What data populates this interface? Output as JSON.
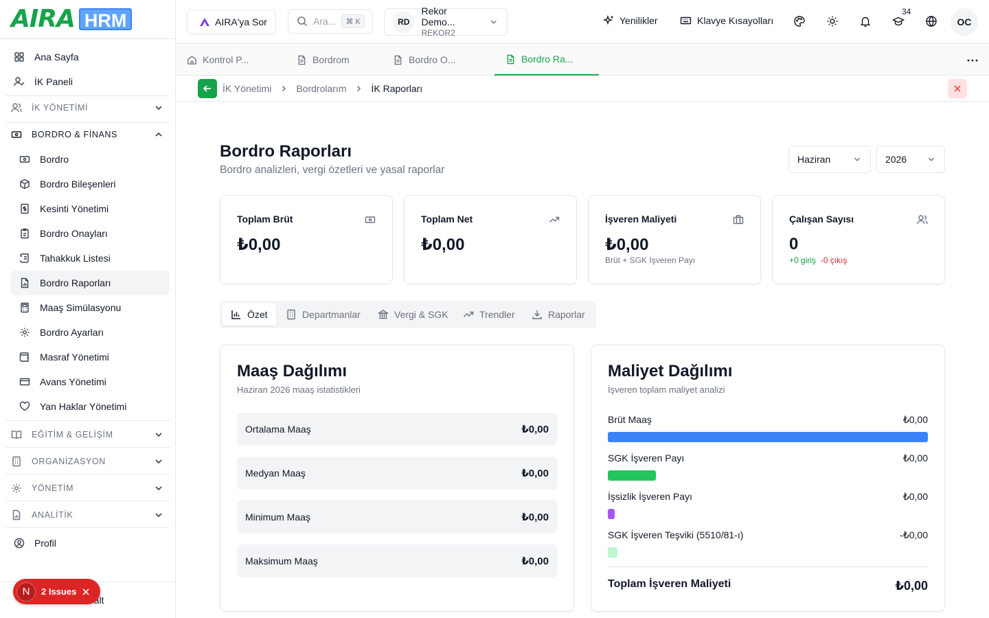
{
  "logo": {
    "brand": "AIRA",
    "product": "HRM"
  },
  "sidebar": {
    "top_items": [
      {
        "label": "Ana Sayfa",
        "icon": "dashboard-grid-icon"
      },
      {
        "label": "İK Paneli",
        "icon": "user-check-icon"
      }
    ],
    "sections": {
      "ik_yonetimi": "İK YÖNETİMİ",
      "bordro_finans": "BORDRO & FİNANS",
      "egitim": "EĞİTİM & GELİŞİM",
      "organizasyon": "ORGANİZASYON",
      "yonetim": "YÖNETİM",
      "analitik": "ANALİTİK"
    },
    "bordro_items": [
      {
        "label": "Bordro",
        "icon": "banknote-icon"
      },
      {
        "label": "Bordro Bileşenleri",
        "icon": "package-icon"
      },
      {
        "label": "Kesinti Yönetimi",
        "icon": "receipt-dollar-icon"
      },
      {
        "label": "Bordro Onayları",
        "icon": "clipboard-check-icon"
      },
      {
        "label": "Tahakkuk Listesi",
        "icon": "scroll-icon"
      },
      {
        "label": "Bordro Raporları",
        "icon": "file-chart-icon"
      },
      {
        "label": "Maaş Simülasyonu",
        "icon": "calculator-icon"
      },
      {
        "label": "Bordro Ayarları",
        "icon": "settings-icon"
      },
      {
        "label": "Masraf Yönetimi",
        "icon": "wallet-icon"
      },
      {
        "label": "Avans Yönetimi",
        "icon": "credit-card-icon"
      },
      {
        "label": "Yan Haklar Yönetimi",
        "icon": "heart-icon"
      }
    ],
    "profile": "Profil",
    "collapse_partial": "ralt",
    "issues": {
      "letter": "N",
      "label": "2 Issues"
    }
  },
  "topbar": {
    "ask_label": "AIRA'ya Sor",
    "search_placeholder": "Ara...",
    "search_shortcut": "⌘ K",
    "company": {
      "initials": "RD",
      "name": "Rekor Demo...",
      "code": "REKOR2"
    },
    "news_label": "Yenilikler",
    "shortcuts_label": "Klavye Kısayolları",
    "notification_count": "34",
    "user_initials": "OC"
  },
  "tabs": [
    {
      "label": "Kontrol P...",
      "icon": "home-icon"
    },
    {
      "label": "Bordrom",
      "icon": "file-text-icon"
    },
    {
      "label": "Bordro O...",
      "icon": "file-text-icon"
    },
    {
      "label": "Bordro Ra...",
      "icon": "file-text-icon",
      "active": true
    }
  ],
  "breadcrumb": [
    "İK Yönetimi",
    "Bordrolarım",
    "İK Raporları"
  ],
  "page": {
    "title": "Bordro Raporları",
    "subtitle": "Bordro analizleri, vergi özetleri ve yasal raporlar",
    "month": "Haziran",
    "year": "2026"
  },
  "stats": [
    {
      "label": "Toplam Brüt",
      "value": "₺0,00",
      "icon": "banknote-icon"
    },
    {
      "label": "Toplam Net",
      "value": "₺0,00",
      "icon": "trending-up-icon"
    },
    {
      "label": "İşveren Maliyeti",
      "value": "₺0,00",
      "note": "Brüt + SGK İşveren Payı",
      "icon": "briefcase-icon"
    },
    {
      "label": "Çalışan Sayısı",
      "value": "0",
      "in": "+0 giriş",
      "out": "-0 çıkış",
      "icon": "users-icon"
    }
  ],
  "segments": [
    {
      "label": "Özet",
      "icon": "bar-chart-icon",
      "active": true
    },
    {
      "label": "Departmanlar",
      "icon": "building-icon"
    },
    {
      "label": "Vergi & SGK",
      "icon": "landmark-icon"
    },
    {
      "label": "Trendler",
      "icon": "trending-up-icon"
    },
    {
      "label": "Raporlar",
      "icon": "download-icon"
    }
  ],
  "salary_panel": {
    "title": "Maaş Dağılımı",
    "subtitle": "Haziran 2026 maaş istatistikleri",
    "rows": [
      {
        "label": "Ortalama Maaş",
        "value": "₺0,00"
      },
      {
        "label": "Medyan Maaş",
        "value": "₺0,00"
      },
      {
        "label": "Minimum Maaş",
        "value": "₺0,00"
      },
      {
        "label": "Maksimum Maaş",
        "value": "₺0,00"
      }
    ]
  },
  "cost_panel": {
    "title": "Maliyet Dağılımı",
    "subtitle": "İşveren toplam maliyet analizi",
    "rows": [
      {
        "label": "Brüt Maaş",
        "value": "₺0,00",
        "color": "#3b82f6",
        "fill": 1.0
      },
      {
        "label": "SGK İşveren Payı",
        "value": "₺0,00",
        "color": "#22c55e",
        "fill": 0.15
      },
      {
        "label": "İşsizlik İşveren Payı",
        "value": "₺0,00",
        "color": "#a855f7",
        "fill": 0.01
      },
      {
        "label": "SGK İşveren Teşviki (5510/81-ı)",
        "value": "-₺0,00",
        "color": "#bbf7d0",
        "fill": 0.03
      }
    ],
    "total_label": "Toplam İşveren Maliyeti",
    "total_value": "₺0,00"
  },
  "colors": {
    "accent": "#16a34a",
    "danger": "#dc2626",
    "brand_blue": "#60a5fa"
  }
}
